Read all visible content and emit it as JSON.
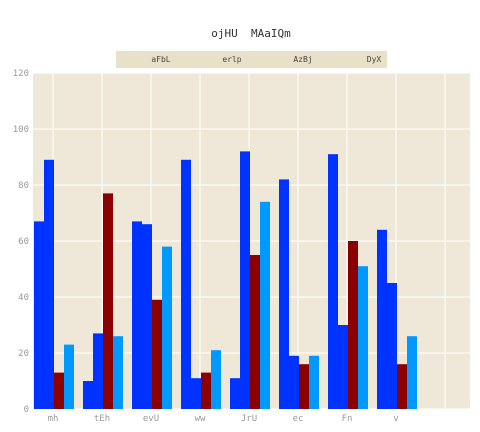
{
  "chart_data": {
    "type": "bar",
    "title": "ojHU  MAaIQm",
    "xlabel": "",
    "ylabel": "",
    "categories": [
      "mh",
      "tEh",
      "evU",
      "ww",
      "JrU",
      "ec",
      "Fn",
      "v"
    ],
    "ylim": [
      0,
      120
    ],
    "yticks": [
      0,
      20,
      40,
      60,
      80,
      100,
      120
    ],
    "grid": true,
    "legend_position": "top-center",
    "series": [
      {
        "name": "aFbL",
        "color": "#0033ff",
        "values": [
          67,
          10,
          67,
          89,
          11,
          82,
          91,
          64
        ]
      },
      {
        "name": "erlp",
        "color": "#0033ff",
        "values": [
          89,
          27,
          66,
          11,
          92,
          19,
          30,
          45
        ]
      },
      {
        "name": "AzBj",
        "color": "#8b0000",
        "values": [
          13,
          77,
          39,
          13,
          55,
          16,
          60,
          16
        ]
      },
      {
        "name": "DyX",
        "color": "#0099ff",
        "values": [
          23,
          26,
          58,
          21,
          74,
          19,
          51,
          26
        ]
      }
    ],
    "colors": {
      "plot_background": "#efe8d8",
      "grid": "#ffffff",
      "legend_background": "#e9e0ca"
    }
  }
}
